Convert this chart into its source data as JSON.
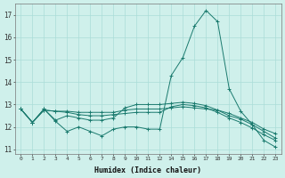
{
  "title": "",
  "xlabel": "Humidex (Indice chaleur)",
  "background_color": "#cff0eb",
  "grid_color": "#aaddd8",
  "line_color": "#1a7a6e",
  "xlim": [
    -0.5,
    23.5
  ],
  "ylim": [
    10.8,
    17.5
  ],
  "xtick_positions": [
    0,
    1,
    2,
    3,
    4,
    5,
    6,
    7,
    8,
    9,
    10,
    11,
    12,
    14,
    15,
    16,
    17,
    18,
    19,
    20,
    21,
    22,
    23
  ],
  "xtick_labels": [
    "0",
    "1",
    "2",
    "3",
    "4",
    "5",
    "6",
    "7",
    "8",
    "9",
    "10",
    "11",
    "12",
    "14",
    "15",
    "16",
    "17",
    "18",
    "19",
    "20",
    "21",
    "22",
    "23"
  ],
  "yticks": [
    11,
    12,
    13,
    14,
    15,
    16,
    17
  ],
  "line1_x": [
    0,
    1,
    2,
    3,
    4,
    5,
    6,
    7,
    8,
    9,
    10,
    11,
    12,
    14,
    15,
    16,
    17,
    18,
    19,
    20,
    21,
    22,
    23
  ],
  "line1_y": [
    12.8,
    12.2,
    12.8,
    12.25,
    11.8,
    12.0,
    11.8,
    11.6,
    11.9,
    12.0,
    12.0,
    11.9,
    11.9,
    14.3,
    15.1,
    16.5,
    17.2,
    16.7,
    13.7,
    12.7,
    12.1,
    11.4,
    11.1
  ],
  "line2_x": [
    0,
    1,
    2,
    3,
    4,
    5,
    6,
    7,
    8,
    9,
    10,
    11,
    12,
    14,
    15,
    16,
    17,
    18,
    19,
    20,
    21,
    22,
    23
  ],
  "line2_y": [
    12.8,
    12.2,
    12.75,
    12.7,
    12.7,
    12.65,
    12.65,
    12.65,
    12.65,
    12.75,
    12.8,
    12.8,
    12.8,
    12.85,
    12.9,
    12.85,
    12.8,
    12.75,
    12.6,
    12.4,
    12.2,
    11.9,
    11.7
  ],
  "line3_x": [
    0,
    1,
    2,
    3,
    4,
    5,
    6,
    7,
    8,
    9,
    10,
    11,
    12,
    14,
    15,
    16,
    17,
    18,
    19,
    20,
    21,
    22,
    23
  ],
  "line3_y": [
    12.8,
    12.2,
    12.75,
    12.7,
    12.65,
    12.55,
    12.5,
    12.5,
    12.55,
    12.6,
    12.65,
    12.65,
    12.65,
    12.9,
    13.0,
    12.95,
    12.85,
    12.65,
    12.4,
    12.2,
    11.95,
    11.65,
    11.4
  ],
  "line4_x": [
    0,
    1,
    2,
    3,
    4,
    5,
    6,
    7,
    8,
    9,
    10,
    11,
    12,
    14,
    15,
    16,
    17,
    18,
    19,
    20,
    21,
    22,
    23
  ],
  "line4_y": [
    12.8,
    12.2,
    12.8,
    12.3,
    12.5,
    12.4,
    12.3,
    12.3,
    12.4,
    12.85,
    13.0,
    13.0,
    13.0,
    13.05,
    13.1,
    13.05,
    12.95,
    12.75,
    12.5,
    12.35,
    12.1,
    11.8,
    11.5
  ]
}
